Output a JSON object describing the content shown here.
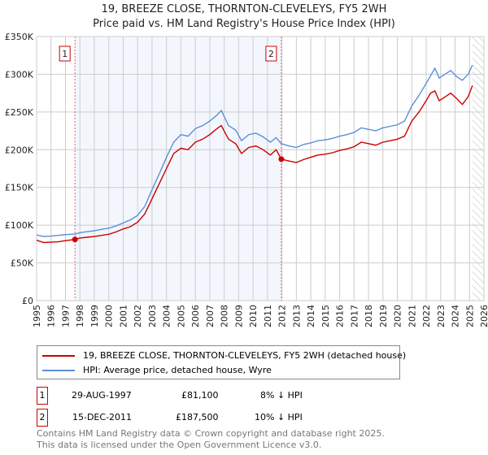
{
  "title": "19, BREEZE CLOSE, THORNTON-CLEVELEYS, FY5 2WH",
  "subtitle": "Price paid vs. HM Land Registry's House Price Index (HPI)",
  "chart_data": {
    "type": "line",
    "xlim": [
      1995,
      2026
    ],
    "ylim": [
      0,
      350000
    ],
    "yticks": [
      0,
      50000,
      100000,
      150000,
      200000,
      250000,
      300000,
      350000
    ],
    "ytick_labels": [
      "£0",
      "£50K",
      "£100K",
      "£150K",
      "£200K",
      "£250K",
      "£300K",
      "£350K"
    ],
    "xticks": [
      1995,
      1996,
      1997,
      1998,
      1999,
      2000,
      2001,
      2002,
      2003,
      2004,
      2005,
      2006,
      2007,
      2008,
      2009,
      2010,
      2011,
      2012,
      2013,
      2014,
      2015,
      2016,
      2017,
      2018,
      2019,
      2020,
      2021,
      2022,
      2023,
      2024,
      2025,
      2026
    ],
    "grid": true,
    "forecast_hatch_from": 2025.2,
    "shaded_between_sales": [
      1997.66,
      2011.96
    ],
    "x": [
      1995,
      1995.5,
      1996,
      1996.5,
      1997,
      1997.66,
      1998,
      1998.5,
      1999,
      1999.5,
      2000,
      2000.5,
      2001,
      2001.5,
      2002,
      2002.5,
      2003,
      2003.5,
      2004,
      2004.5,
      2005,
      2005.5,
      2006,
      2006.5,
      2007,
      2007.5,
      2007.8,
      2008.3,
      2008.8,
      2009.2,
      2009.7,
      2010.2,
      2010.7,
      2011.2,
      2011.6,
      2011.96,
      2012.5,
      2013,
      2013.5,
      2014,
      2014.5,
      2015,
      2015.5,
      2016,
      2016.5,
      2017,
      2017.5,
      2018,
      2018.5,
      2019,
      2019.5,
      2020,
      2020.5,
      2021,
      2021.5,
      2022,
      2022.3,
      2022.6,
      2022.9,
      2023.3,
      2023.7,
      2024.1,
      2024.5,
      2024.9,
      2025.2
    ],
    "series": [
      {
        "name": "19, BREEZE CLOSE, THORNTON-CLEVELEYS, FY5 2WH (detached house)",
        "color": "#cc0000",
        "values": [
          80000,
          77000,
          77500,
          78000,
          79500,
          81100,
          83000,
          84000,
          85000,
          86500,
          88000,
          91000,
          95000,
          98000,
          104000,
          115000,
          135000,
          155000,
          175000,
          195000,
          202000,
          200000,
          210000,
          214000,
          220000,
          228000,
          232000,
          214000,
          208000,
          195000,
          203000,
          205000,
          200000,
          193000,
          200000,
          187500,
          185000,
          183000,
          187000,
          190000,
          193000,
          194000,
          196000,
          199000,
          201000,
          204000,
          210000,
          208000,
          206000,
          210000,
          212000,
          214000,
          218000,
          238000,
          250000,
          265000,
          275000,
          278000,
          265000,
          270000,
          275000,
          268000,
          260000,
          270000,
          285000
        ]
      },
      {
        "name": "HPI: Average price, detached house, Wyre",
        "color": "#5b8fd6",
        "values": [
          87000,
          85000,
          85500,
          86500,
          87500,
          88200,
          90000,
          91500,
          92500,
          94500,
          96000,
          99000,
          103000,
          107000,
          113000,
          125000,
          147000,
          168000,
          190000,
          210000,
          220000,
          218000,
          228000,
          232000,
          238000,
          246000,
          252000,
          232000,
          226000,
          212000,
          220000,
          222000,
          217000,
          210000,
          216000,
          208000,
          205000,
          203000,
          207000,
          209000,
          212000,
          213000,
          215000,
          218000,
          220000,
          223000,
          229000,
          227000,
          225000,
          229000,
          231000,
          233000,
          238000,
          258000,
          272000,
          288000,
          298000,
          308000,
          295000,
          300000,
          305000,
          297000,
          292000,
          300000,
          312000
        ]
      }
    ],
    "markers": [
      {
        "label": "1",
        "x": 1997.66,
        "y": 81100
      },
      {
        "label": "2",
        "x": 2011.96,
        "y": 187500
      }
    ]
  },
  "legend": {
    "items": [
      {
        "label": "19, BREEZE CLOSE, THORNTON-CLEVELEYS, FY5 2WH (detached house)",
        "color": "#cc0000"
      },
      {
        "label": "HPI: Average price, detached house, Wyre",
        "color": "#5b8fd6"
      }
    ]
  },
  "sales": [
    {
      "num": "1",
      "date": "29-AUG-1997",
      "price": "£81,100",
      "delta": "8% ↓ HPI"
    },
    {
      "num": "2",
      "date": "15-DEC-2011",
      "price": "£187,500",
      "delta": "10% ↓ HPI"
    }
  ],
  "footer": {
    "line1": "Contains HM Land Registry data © Crown copyright and database right 2025.",
    "line2": "This data is licensed under the Open Government Licence v3.0."
  }
}
